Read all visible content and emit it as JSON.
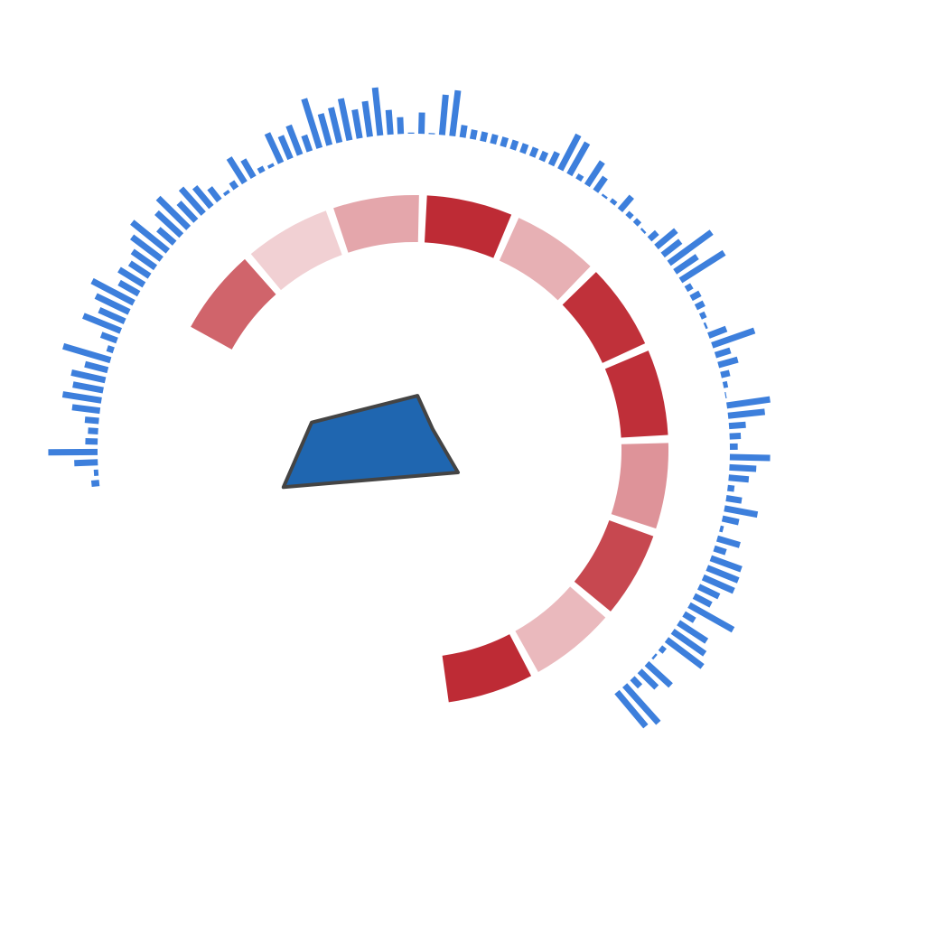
{
  "colors": {
    "bars": "#3d7fdc",
    "polygon_fill": "#1f66b0",
    "polygon_stroke": "#444444",
    "heat_low": "#f6dfe1",
    "heat_high": "#bb222c"
  },
  "chart_data": [
    {
      "type": "bar",
      "layout": "radial",
      "angle_range_deg": [
        -96,
        140
      ],
      "values": [
        0.14,
        0.08,
        0.42,
        0.88,
        0.22,
        0.18,
        0.25,
        0.5,
        0.7,
        0.55,
        0.62,
        0.42,
        0.88,
        0.12,
        0.3,
        0.72,
        0.5,
        0.66,
        0.84,
        0.4,
        0.52,
        0.42,
        0.5,
        0.66,
        0.82,
        0.38,
        0.6,
        0.76,
        0.44,
        0.6,
        0.46,
        0.28,
        0.06,
        0.14,
        0.52,
        0.36,
        0.1,
        0.06,
        0.58,
        0.44,
        0.56,
        0.3,
        0.92,
        0.58,
        0.64,
        0.76,
        0.52,
        0.64,
        0.86,
        0.44,
        0.3,
        0.02,
        0.38,
        0.02,
        0.72,
        0.82,
        0.22,
        0.17,
        0.17,
        0.17,
        0.17,
        0.17,
        0.17,
        0.17,
        0.17,
        0.25,
        0.7,
        0.65,
        0.1,
        0.5,
        0.3,
        0.04,
        0.08,
        0.32,
        0.1,
        0.1,
        0.04,
        0.18,
        0.46,
        0.4,
        0.94,
        0.48,
        0.92,
        0.12,
        0.18,
        0.16,
        0.1,
        0.04,
        0.34,
        0.8,
        0.28,
        0.36,
        0.16,
        0.08,
        0.02,
        0.78,
        0.66,
        0.3,
        0.2,
        0.14,
        0.72,
        0.48,
        0.36,
        0.12,
        0.28,
        0.6,
        0.3,
        0.06,
        0.42,
        0.22,
        0.58,
        0.6,
        0.6,
        0.4,
        0.34,
        0.9,
        0.22,
        0.6,
        0.7,
        0.8,
        0.1,
        0.04,
        0.58,
        0.42,
        0.2,
        0.9,
        0.8
      ]
    },
    {
      "type": "heatmap",
      "layout": "radial",
      "start_angle_deg": -62,
      "end_angle_deg": 173,
      "values": [
        0.65,
        0.08,
        0.3,
        0.95,
        0.25,
        0.92,
        0.93,
        0.4,
        0.8,
        0.2,
        0.95
      ]
    },
    {
      "type": "radar",
      "values": [
        60,
        31,
        55,
        150,
        117
      ]
    }
  ]
}
